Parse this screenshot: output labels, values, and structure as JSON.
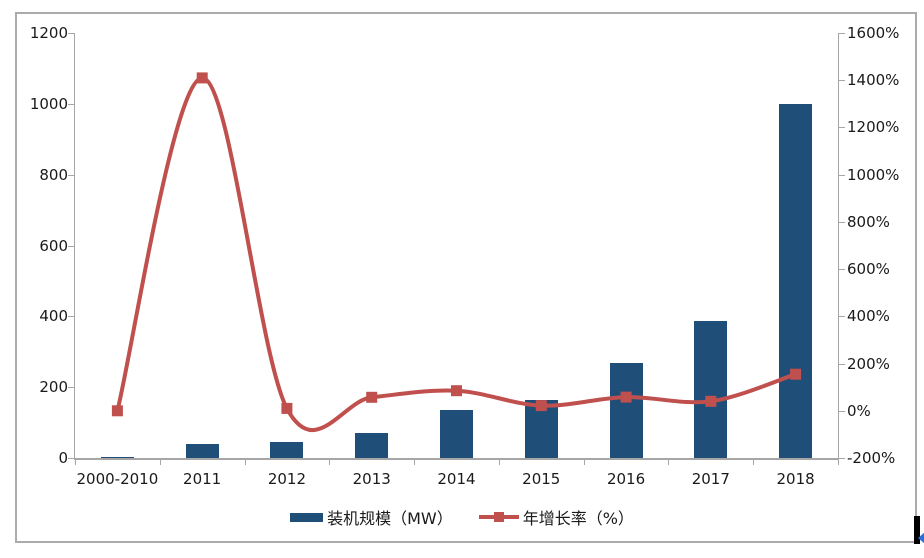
{
  "chart_data": {
    "type": "bar",
    "combo": "bar+line dual axis",
    "title": "",
    "categories": [
      "2000-2010",
      "2011",
      "2012",
      "2013",
      "2014",
      "2015",
      "2016",
      "2017",
      "2018"
    ],
    "series": [
      {
        "name": "装机规模（MW）",
        "type": "bar",
        "axis": "left",
        "values": [
          3,
          40,
          45,
          70,
          135,
          165,
          268,
          388,
          1000
        ]
      },
      {
        "name": "年增长率（%）",
        "type": "line",
        "axis": "right",
        "smooth": true,
        "marker": "square",
        "values": [
          0,
          1410,
          10,
          57,
          85,
          22,
          58,
          40,
          155
        ]
      }
    ],
    "left_axis": {
      "min": 0,
      "max": 1200,
      "step": 200,
      "tick_labels": [
        "0",
        "200",
        "400",
        "600",
        "800",
        "1000",
        "1200"
      ]
    },
    "right_axis": {
      "min": -200,
      "max": 1600,
      "step": 200,
      "tick_labels": [
        "-200%",
        "0%",
        "200%",
        "400%",
        "600%",
        "800%",
        "1000%",
        "1200%",
        "1400%",
        "1600%"
      ]
    },
    "grid": false,
    "legend_position": "bottom",
    "colors": {
      "bar": "#1f4e79",
      "line": "#c0504d",
      "axis": "#a6a6a6",
      "text": "#1a1a1a",
      "frame_border": "#ababab",
      "artifact_black": "#000000",
      "artifact_blue": "#2e6fd6"
    }
  }
}
